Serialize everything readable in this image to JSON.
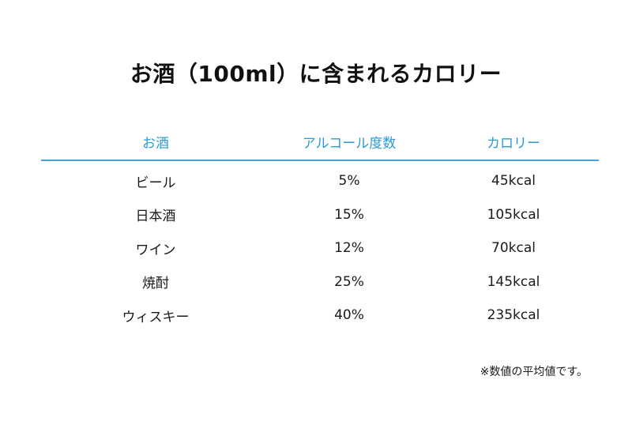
{
  "title": "お酒（100ml）に含まれるカロリー",
  "table": {
    "headers": [
      "お酒",
      "アルコール度数",
      "カロリー"
    ],
    "rows": [
      [
        "ビール",
        "5%",
        "45kcal"
      ],
      [
        "日本酒",
        "15%",
        "105kcal"
      ],
      [
        "ワイン",
        "12%",
        "70kcal"
      ],
      [
        "焼酎",
        "25%",
        "145kcal"
      ],
      [
        "ウィスキー",
        "40%",
        "235kcal"
      ]
    ]
  },
  "note": "※数値の平均値です。",
  "colors": {
    "accent": "#2b9ad6",
    "rule": "#4aa3d8",
    "text": "#1a1a1a"
  }
}
